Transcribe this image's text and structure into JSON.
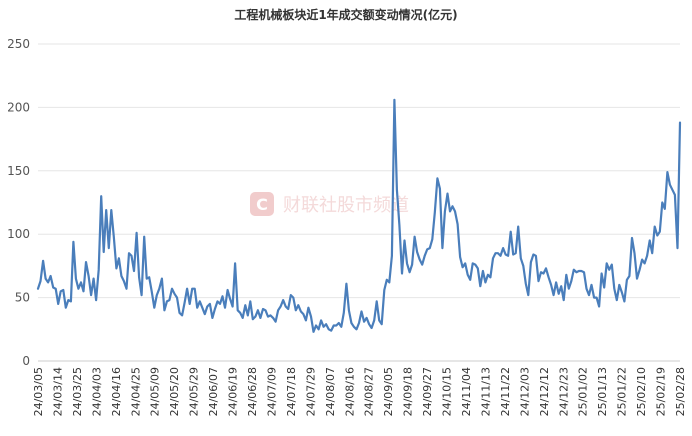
{
  "chart_data": {
    "type": "line",
    "title": "工程机械板块近1年成交额变动情况(亿元)",
    "xlabel": "",
    "ylabel": "",
    "ylim": [
      0,
      250
    ],
    "yticks": [
      0,
      50,
      100,
      150,
      200,
      250
    ],
    "grid": true,
    "legend": "none",
    "x_tick_labels": [
      "24/03/05",
      "24/03/14",
      "24/03/25",
      "24/04/03",
      "24/04/16",
      "24/04/25",
      "24/05/09",
      "24/05/20",
      "24/05/29",
      "24/06/07",
      "24/06/19",
      "24/06/28",
      "24/07/09",
      "24/07/18",
      "24/07/29",
      "24/08/07",
      "24/08/16",
      "24/08/27",
      "24/09/05",
      "24/09/18",
      "24/09/27",
      "24/10/15",
      "24/11/04",
      "24/11/13",
      "24/11/22",
      "24/12/03",
      "24/12/12",
      "24/12/23",
      "25/01/02",
      "25/01/13",
      "25/01/22",
      "25/02/10",
      "25/02/19",
      "25/02/28"
    ],
    "series": [
      {
        "name": "",
        "color": "#4a7ebb",
        "values": [
          57,
          63,
          79,
          65,
          62,
          67,
          58,
          57,
          45,
          55,
          56,
          42,
          48,
          47,
          94,
          65,
          57,
          62,
          55,
          78,
          67,
          52,
          65,
          48,
          72,
          130,
          86,
          119,
          89,
          119,
          98,
          73,
          81,
          67,
          63,
          57,
          85,
          83,
          71,
          101,
          66,
          52,
          98,
          65,
          66,
          55,
          42,
          52,
          57,
          65,
          40,
          47,
          48,
          57,
          53,
          50,
          38,
          36,
          46,
          57,
          45,
          57,
          57,
          42,
          47,
          42,
          37,
          43,
          45,
          34,
          41,
          47,
          45,
          51,
          42,
          56,
          49,
          43,
          77,
          40,
          38,
          34,
          44,
          36,
          47,
          33,
          35,
          40,
          34,
          41,
          40,
          35,
          36,
          34,
          31,
          40,
          43,
          48,
          43,
          41,
          52,
          50,
          40,
          44,
          39,
          37,
          32,
          42,
          35,
          23,
          28,
          25,
          32,
          27,
          29,
          25,
          24,
          28,
          28,
          30,
          27,
          38,
          61,
          40,
          30,
          27,
          25,
          30,
          39,
          31,
          34,
          29,
          26,
          32,
          47,
          32,
          29,
          56,
          64,
          62,
          83,
          206,
          135,
          107,
          69,
          95,
          77,
          70,
          76,
          98,
          86,
          80,
          76,
          83,
          88,
          89,
          96,
          117,
          144,
          136,
          89,
          118,
          132,
          118,
          122,
          118,
          108,
          82,
          74,
          77,
          68,
          64,
          77,
          76,
          73,
          59,
          71,
          62,
          68,
          66,
          81,
          85,
          85,
          83,
          89,
          84,
          83,
          102,
          84,
          85,
          106,
          81,
          75,
          61,
          52,
          78,
          84,
          83,
          63,
          70,
          69,
          73,
          66,
          60,
          52,
          62,
          53,
          59,
          48,
          68,
          57,
          63,
          72,
          70,
          71,
          71,
          70,
          57,
          52,
          60,
          50,
          50,
          43,
          69,
          58,
          77,
          72,
          76,
          57,
          48,
          60,
          54,
          47,
          64,
          67,
          97,
          85,
          65,
          72,
          80,
          77,
          83,
          95,
          85,
          106,
          99,
          102,
          125,
          120,
          149,
          139,
          135,
          131,
          89,
          188
        ]
      }
    ]
  },
  "watermark": {
    "logo_letter": "C",
    "text": "财联社股市频道"
  }
}
